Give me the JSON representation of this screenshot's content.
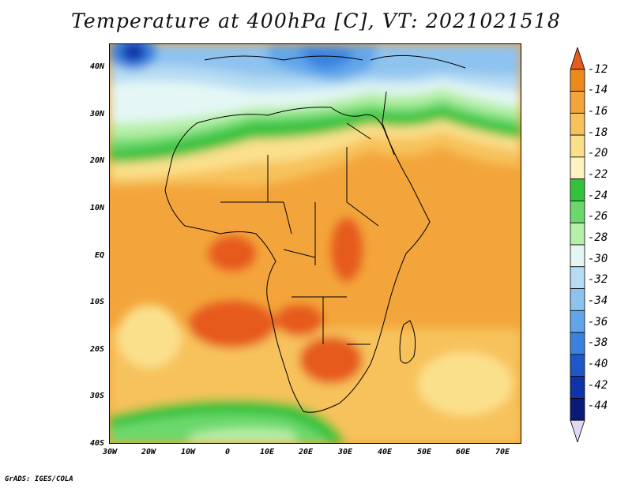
{
  "title": "Temperature at 400hPa [C], VT: 2021021518",
  "footer": "GrADS: IGES/COLA",
  "map": {
    "lat_labels": [
      "40N",
      "30N",
      "20N",
      "10N",
      "EQ",
      "10S",
      "20S",
      "30S",
      "40S"
    ],
    "lon_labels": [
      "30W",
      "20W",
      "10W",
      "0",
      "10E",
      "20E",
      "30E",
      "40E",
      "50E",
      "60E",
      "70E"
    ]
  },
  "colorbar": {
    "labels": [
      "-12",
      "-14",
      "-16",
      "-18",
      "-20",
      "-22",
      "-24",
      "-26",
      "-28",
      "-30",
      "-32",
      "-34",
      "-36",
      "-38",
      "-40",
      "-42",
      "-44"
    ],
    "colors": [
      "#e65a1c",
      "#ed8a1a",
      "#f3a53b",
      "#f7c25c",
      "#fbe08c",
      "#fcf3c0",
      "#34c13c",
      "#6cd86c",
      "#b6efa8",
      "#e4f7f5",
      "#b6dcf3",
      "#8ec3ef",
      "#62a6ea",
      "#3b82e0",
      "#1e57c8",
      "#0f33a8",
      "#0a1a78",
      "#e2d8f6"
    ]
  }
}
